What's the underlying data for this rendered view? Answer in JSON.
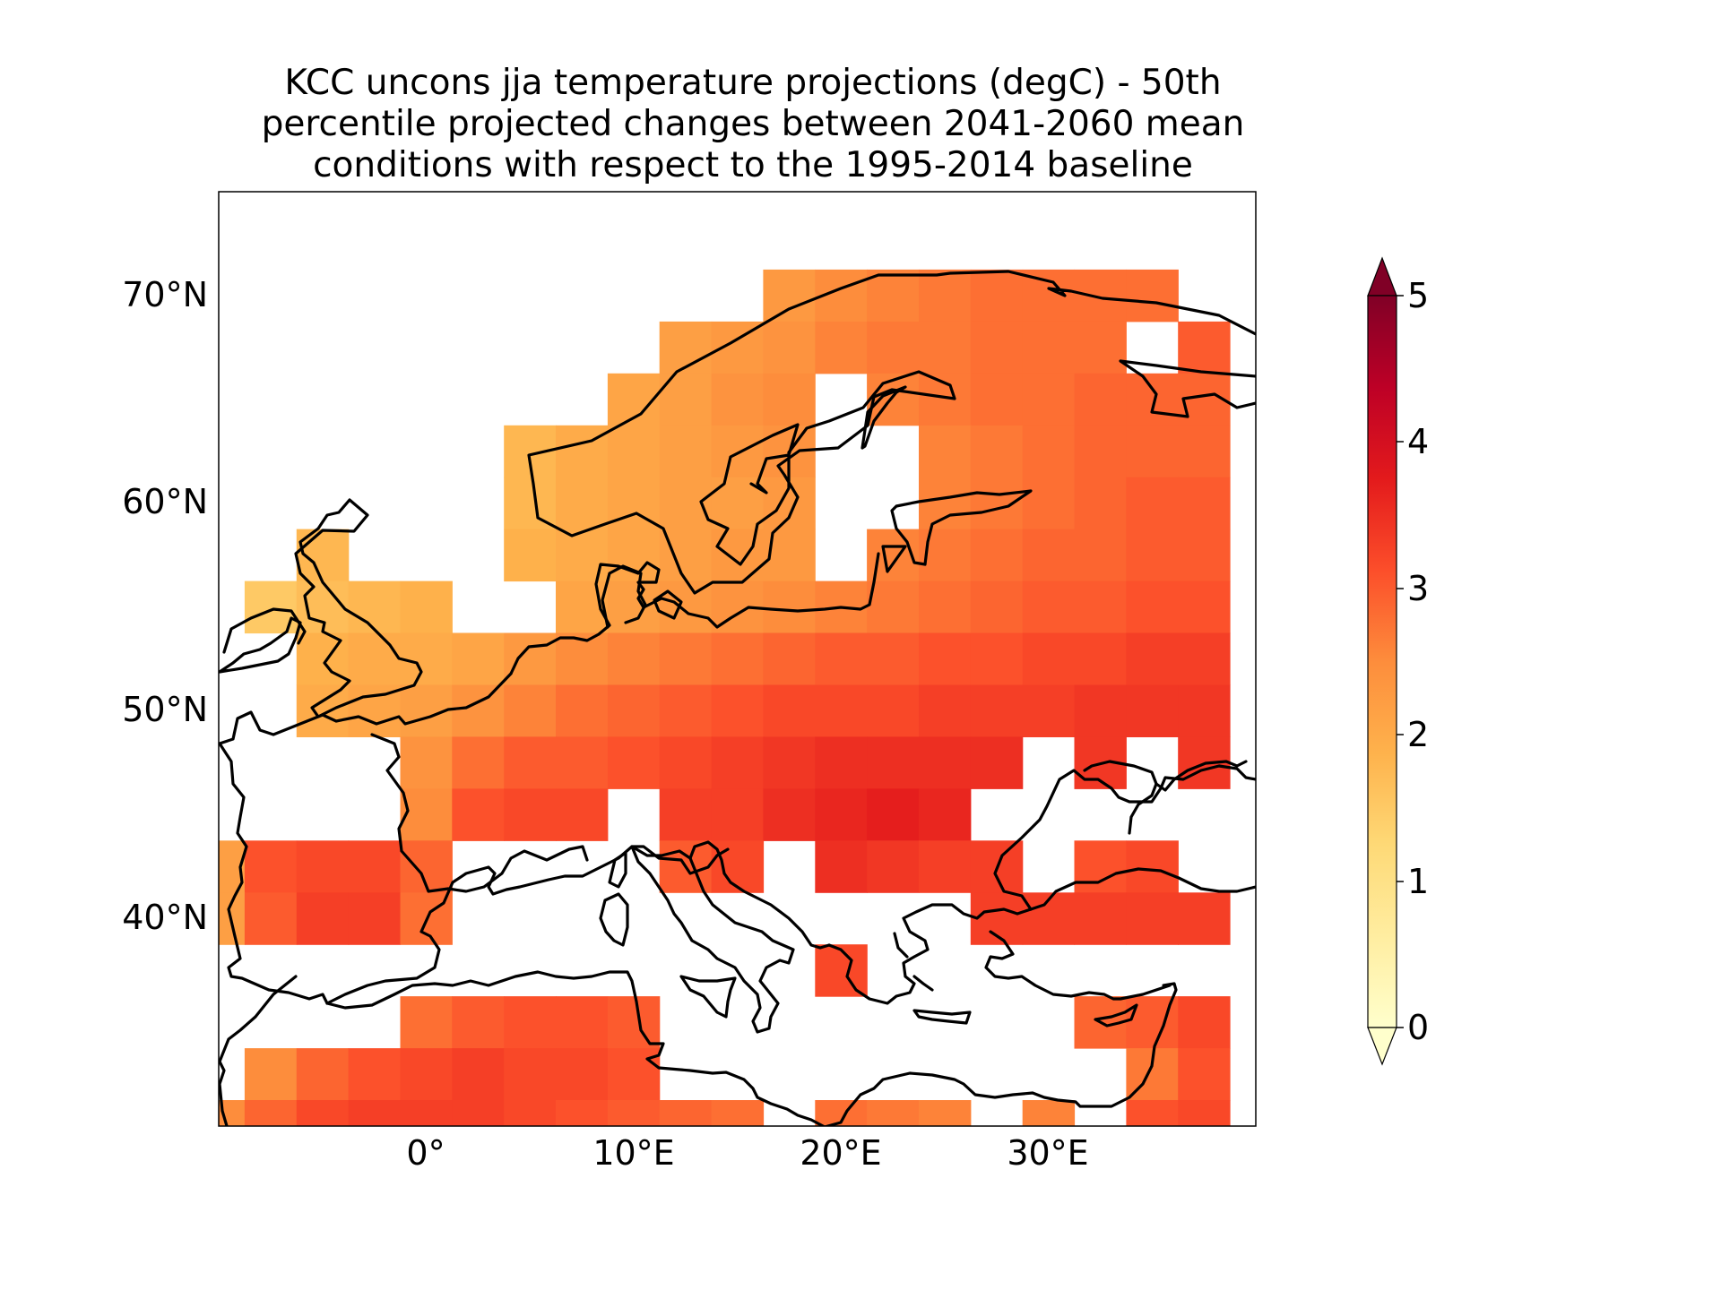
{
  "title": {
    "line1": "KCC uncons jja temperature projections (degC) - 50th",
    "line2": "percentile projected changes between 2041-2060 mean",
    "line3": "conditions with respect to the 1995-2014 baseline"
  },
  "map": {
    "type": "heatmap",
    "region": "Europe",
    "projection": "PlateCarree",
    "lon_range": [
      -10,
      40
    ],
    "lat_range": [
      30,
      75
    ],
    "cell_size_deg": 2.5,
    "coastlines": true,
    "lat_ticks": [
      {
        "value": 40,
        "label": "40°N"
      },
      {
        "value": 50,
        "label": "50°N"
      },
      {
        "value": 60,
        "label": "60°N"
      },
      {
        "value": 70,
        "label": "70°N"
      }
    ],
    "lon_ticks": [
      {
        "value": 0,
        "label": "0°"
      },
      {
        "value": 10,
        "label": "10°E"
      },
      {
        "value": 20,
        "label": "20°E"
      },
      {
        "value": 30,
        "label": "30°E"
      }
    ]
  },
  "colorbar": {
    "colormap": "YlOrRd",
    "min": 0,
    "max": 5,
    "extend": "both",
    "ticks": [
      "0",
      "1",
      "2",
      "3",
      "4",
      "5"
    ]
  },
  "chart_data": {
    "type": "heatmap",
    "title": "KCC uncons jja temperature projections (degC) - 50th percentile projected changes between 2041-2060 mean conditions with respect to the 1995-2014 baseline",
    "x_kind": "longitude (deg E)",
    "y_kind": "latitude (deg N)",
    "x_range": [
      -10,
      40
    ],
    "y_range": [
      30,
      75
    ],
    "value_range": [
      0,
      5
    ],
    "cells": [
      [
        17.5,
        70.0,
        2.3
      ],
      [
        20.0,
        70.0,
        2.5
      ],
      [
        22.5,
        70.0,
        2.6
      ],
      [
        25.0,
        70.0,
        2.7
      ],
      [
        27.5,
        70.0,
        2.8
      ],
      [
        30.0,
        70.0,
        2.8
      ],
      [
        32.5,
        70.0,
        2.8
      ],
      [
        35.0,
        70.0,
        2.8
      ],
      [
        12.5,
        67.5,
        2.2
      ],
      [
        15.0,
        67.5,
        2.3
      ],
      [
        17.5,
        67.5,
        2.4
      ],
      [
        20.0,
        67.5,
        2.6
      ],
      [
        22.5,
        67.5,
        2.7
      ],
      [
        25.0,
        67.5,
        2.7
      ],
      [
        27.5,
        67.5,
        2.8
      ],
      [
        30.0,
        67.5,
        2.8
      ],
      [
        32.5,
        67.5,
        2.8
      ],
      [
        37.5,
        67.5,
        3.0
      ],
      [
        10.0,
        65.0,
        2.1
      ],
      [
        12.5,
        65.0,
        2.2
      ],
      [
        15.0,
        65.0,
        2.4
      ],
      [
        17.5,
        65.0,
        2.5
      ],
      [
        22.5,
        65.0,
        2.6
      ],
      [
        25.0,
        65.0,
        2.7
      ],
      [
        27.5,
        65.0,
        2.8
      ],
      [
        30.0,
        65.0,
        2.8
      ],
      [
        32.5,
        65.0,
        2.9
      ],
      [
        35.0,
        65.0,
        2.9
      ],
      [
        37.5,
        65.0,
        2.9
      ],
      [
        5.0,
        62.5,
        1.8
      ],
      [
        7.5,
        62.5,
        2.0
      ],
      [
        10.0,
        62.5,
        2.1
      ],
      [
        12.5,
        62.5,
        2.2
      ],
      [
        15.0,
        62.5,
        2.3
      ],
      [
        17.5,
        62.5,
        2.4
      ],
      [
        25.0,
        62.5,
        2.6
      ],
      [
        27.5,
        62.5,
        2.7
      ],
      [
        30.0,
        62.5,
        2.8
      ],
      [
        32.5,
        62.5,
        2.9
      ],
      [
        35.0,
        62.5,
        2.9
      ],
      [
        37.5,
        62.5,
        2.9
      ],
      [
        5.0,
        60.0,
        1.8
      ],
      [
        7.5,
        60.0,
        2.0
      ],
      [
        10.0,
        60.0,
        2.1
      ],
      [
        12.5,
        60.0,
        2.2
      ],
      [
        15.0,
        60.0,
        2.2
      ],
      [
        17.5,
        60.0,
        2.3
      ],
      [
        25.0,
        60.0,
        2.6
      ],
      [
        27.5,
        60.0,
        2.7
      ],
      [
        30.0,
        60.0,
        2.8
      ],
      [
        32.5,
        60.0,
        2.9
      ],
      [
        35.0,
        60.0,
        3.0
      ],
      [
        37.5,
        60.0,
        3.0
      ],
      [
        -5.0,
        57.5,
        1.8
      ],
      [
        5.0,
        57.5,
        1.9
      ],
      [
        7.5,
        57.5,
        2.0
      ],
      [
        10.0,
        57.5,
        2.1
      ],
      [
        12.5,
        57.5,
        2.2
      ],
      [
        15.0,
        57.5,
        2.3
      ],
      [
        17.5,
        57.5,
        2.3
      ],
      [
        22.5,
        57.5,
        2.6
      ],
      [
        25.0,
        57.5,
        2.7
      ],
      [
        27.5,
        57.5,
        2.8
      ],
      [
        30.0,
        57.5,
        2.9
      ],
      [
        32.5,
        57.5,
        2.9
      ],
      [
        35.0,
        57.5,
        3.0
      ],
      [
        37.5,
        57.5,
        3.0
      ],
      [
        -7.5,
        55.0,
        1.5
      ],
      [
        -5.0,
        55.0,
        1.7
      ],
      [
        -2.5,
        55.0,
        1.8
      ],
      [
        0.0,
        55.0,
        1.9
      ],
      [
        7.5,
        55.0,
        2.1
      ],
      [
        10.0,
        55.0,
        2.2
      ],
      [
        12.5,
        55.0,
        2.3
      ],
      [
        15.0,
        55.0,
        2.4
      ],
      [
        17.5,
        55.0,
        2.5
      ],
      [
        20.0,
        55.0,
        2.6
      ],
      [
        22.5,
        55.0,
        2.7
      ],
      [
        25.0,
        55.0,
        2.8
      ],
      [
        27.5,
        55.0,
        2.9
      ],
      [
        30.0,
        55.0,
        3.0
      ],
      [
        32.5,
        55.0,
        3.0
      ],
      [
        35.0,
        55.0,
        3.1
      ],
      [
        37.5,
        55.0,
        3.1
      ],
      [
        -5.0,
        52.5,
        1.9
      ],
      [
        -2.5,
        52.5,
        2.0
      ],
      [
        0.0,
        52.5,
        2.0
      ],
      [
        2.5,
        52.5,
        2.1
      ],
      [
        5.0,
        52.5,
        2.3
      ],
      [
        7.5,
        52.5,
        2.5
      ],
      [
        10.0,
        52.5,
        2.6
      ],
      [
        12.5,
        52.5,
        2.7
      ],
      [
        15.0,
        52.5,
        2.8
      ],
      [
        17.5,
        52.5,
        2.9
      ],
      [
        20.0,
        52.5,
        3.0
      ],
      [
        22.5,
        52.5,
        3.0
      ],
      [
        25.0,
        52.5,
        3.1
      ],
      [
        27.5,
        52.5,
        3.1
      ],
      [
        30.0,
        52.5,
        3.2
      ],
      [
        32.5,
        52.5,
        3.2
      ],
      [
        35.0,
        52.5,
        3.3
      ],
      [
        37.5,
        52.5,
        3.3
      ],
      [
        -5.0,
        50.0,
        2.0
      ],
      [
        -2.5,
        50.0,
        2.1
      ],
      [
        0.0,
        50.0,
        2.2
      ],
      [
        2.5,
        50.0,
        2.4
      ],
      [
        5.0,
        50.0,
        2.6
      ],
      [
        7.5,
        50.0,
        2.8
      ],
      [
        10.0,
        50.0,
        2.9
      ],
      [
        12.5,
        50.0,
        3.0
      ],
      [
        15.0,
        50.0,
        3.1
      ],
      [
        17.5,
        50.0,
        3.2
      ],
      [
        20.0,
        50.0,
        3.2
      ],
      [
        22.5,
        50.0,
        3.2
      ],
      [
        25.0,
        50.0,
        3.3
      ],
      [
        27.5,
        50.0,
        3.3
      ],
      [
        30.0,
        50.0,
        3.3
      ],
      [
        32.5,
        50.0,
        3.4
      ],
      [
        35.0,
        50.0,
        3.4
      ],
      [
        37.5,
        50.0,
        3.4
      ],
      [
        0.0,
        47.5,
        2.4
      ],
      [
        2.5,
        47.5,
        2.8
      ],
      [
        5.0,
        47.5,
        3.0
      ],
      [
        7.5,
        47.5,
        3.0
      ],
      [
        10.0,
        47.5,
        3.1
      ],
      [
        12.5,
        47.5,
        3.2
      ],
      [
        15.0,
        47.5,
        3.3
      ],
      [
        17.5,
        47.5,
        3.4
      ],
      [
        20.0,
        47.5,
        3.5
      ],
      [
        22.5,
        47.5,
        3.5
      ],
      [
        25.0,
        47.5,
        3.5
      ],
      [
        27.5,
        47.5,
        3.5
      ],
      [
        32.5,
        47.5,
        3.4
      ],
      [
        37.5,
        47.5,
        3.4
      ],
      [
        0.0,
        45.0,
        2.5
      ],
      [
        2.5,
        45.0,
        3.1
      ],
      [
        5.0,
        45.0,
        3.2
      ],
      [
        7.5,
        45.0,
        3.2
      ],
      [
        12.5,
        45.0,
        3.3
      ],
      [
        15.0,
        45.0,
        3.3
      ],
      [
        17.5,
        45.0,
        3.5
      ],
      [
        20.0,
        45.0,
        3.6
      ],
      [
        22.5,
        45.0,
        3.7
      ],
      [
        25.0,
        45.0,
        3.6
      ],
      [
        -10.0,
        42.5,
        2.2
      ],
      [
        -7.5,
        42.5,
        3.1
      ],
      [
        -5.0,
        42.5,
        3.2
      ],
      [
        -2.5,
        42.5,
        3.2
      ],
      [
        0.0,
        42.5,
        2.9
      ],
      [
        12.5,
        42.5,
        3.0
      ],
      [
        15.0,
        42.5,
        3.2
      ],
      [
        20.0,
        42.5,
        3.5
      ],
      [
        22.5,
        42.5,
        3.4
      ],
      [
        25.0,
        42.5,
        3.3
      ],
      [
        27.5,
        42.5,
        3.3
      ],
      [
        32.5,
        42.5,
        3.1
      ],
      [
        35.0,
        42.5,
        3.2
      ],
      [
        -10.0,
        40.0,
        2.2
      ],
      [
        -7.5,
        40.0,
        3.0
      ],
      [
        -5.0,
        40.0,
        3.3
      ],
      [
        -2.5,
        40.0,
        3.3
      ],
      [
        0.0,
        40.0,
        2.8
      ],
      [
        27.5,
        40.0,
        3.3
      ],
      [
        30.0,
        40.0,
        3.3
      ],
      [
        32.5,
        40.0,
        3.3
      ],
      [
        35.0,
        40.0,
        3.3
      ],
      [
        37.5,
        40.0,
        3.3
      ],
      [
        20.0,
        37.5,
        3.2
      ],
      [
        0.0,
        35.0,
        2.8
      ],
      [
        2.5,
        35.0,
        3.0
      ],
      [
        5.0,
        35.0,
        3.1
      ],
      [
        7.5,
        35.0,
        3.1
      ],
      [
        10.0,
        35.0,
        3.0
      ],
      [
        32.5,
        35.0,
        2.9
      ],
      [
        35.0,
        35.0,
        3.0
      ],
      [
        37.5,
        35.0,
        3.2
      ],
      [
        -7.5,
        32.5,
        2.5
      ],
      [
        -5.0,
        32.5,
        2.9
      ],
      [
        -2.5,
        32.5,
        3.1
      ],
      [
        0.0,
        32.5,
        3.2
      ],
      [
        2.5,
        32.5,
        3.3
      ],
      [
        5.0,
        32.5,
        3.2
      ],
      [
        7.5,
        32.5,
        3.2
      ],
      [
        10.0,
        32.5,
        3.1
      ],
      [
        35.0,
        32.5,
        2.7
      ],
      [
        37.5,
        32.5,
        3.1
      ],
      [
        -10.0,
        30.0,
        2.5
      ],
      [
        -7.5,
        30.0,
        2.9
      ],
      [
        -5.0,
        30.0,
        3.2
      ],
      [
        -2.5,
        30.0,
        3.3
      ],
      [
        0.0,
        30.0,
        3.3
      ],
      [
        2.5,
        30.0,
        3.3
      ],
      [
        5.0,
        30.0,
        3.2
      ],
      [
        7.5,
        30.0,
        3.1
      ],
      [
        10.0,
        30.0,
        3.0
      ],
      [
        12.5,
        30.0,
        2.9
      ],
      [
        15.0,
        30.0,
        2.8
      ],
      [
        20.0,
        30.0,
        2.8
      ],
      [
        22.5,
        30.0,
        2.7
      ],
      [
        25.0,
        30.0,
        2.6
      ],
      [
        30.0,
        30.0,
        2.6
      ],
      [
        35.0,
        30.0,
        3.1
      ],
      [
        37.5,
        30.0,
        3.2
      ]
    ]
  }
}
